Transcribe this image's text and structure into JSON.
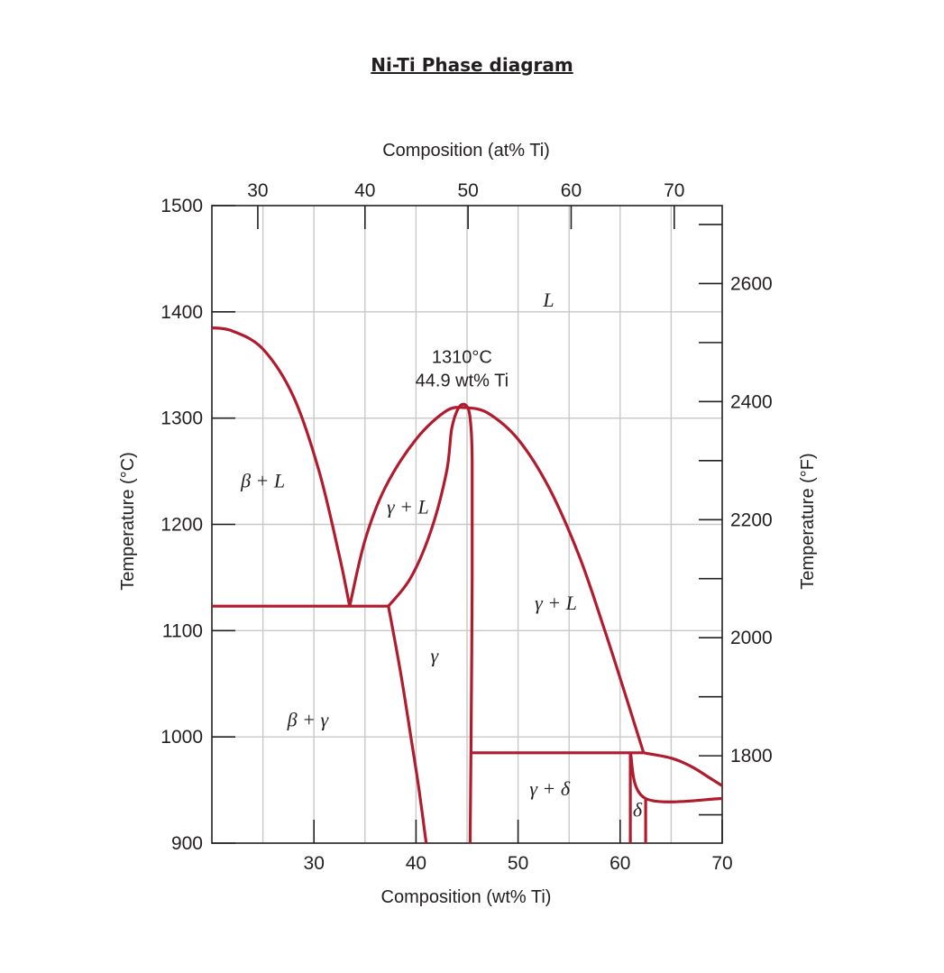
{
  "page": {
    "title": "Ni-Ti Phase diagram"
  },
  "chart_data": {
    "type": "line",
    "title": "Ni-Ti Phase diagram",
    "xlabel": "Composition (wt% Ti)",
    "x2label": "Composition (at% Ti)",
    "ylabel": "Temperature (°C)",
    "y2label": "Temperature (°F)",
    "xlim": [
      20,
      70
    ],
    "ylim": [
      900,
      1500
    ],
    "x_ticks": [
      30,
      40,
      50,
      60,
      70
    ],
    "y_ticks": [
      900,
      1000,
      1100,
      1200,
      1300,
      1400,
      1500
    ],
    "at_ticks": [
      30,
      40,
      50,
      60,
      70
    ],
    "at_tick_wt": [
      24.5,
      35.0,
      45.1,
      55.2,
      65.3
    ],
    "f_ticks": [
      1800,
      2000,
      2200,
      2400,
      2600
    ],
    "f_minor_ticks": [
      1700,
      1900,
      2100,
      2300,
      2500,
      2700
    ],
    "grid": true,
    "line_color": "#b01c2e",
    "series": [
      {
        "points": [
          [
            20,
            1385
          ],
          [
            22,
            1382
          ],
          [
            25,
            1365
          ],
          [
            28,
            1320
          ],
          [
            30.5,
            1250
          ],
          [
            32.5,
            1170
          ],
          [
            33.5,
            1123
          ]
        ]
      },
      {
        "points": [
          [
            33.5,
            1123
          ],
          [
            35,
            1185
          ],
          [
            37,
            1235
          ],
          [
            40,
            1280
          ],
          [
            43,
            1307
          ],
          [
            44.9,
            1310
          ]
        ]
      },
      {
        "points": [
          [
            37.3,
            1123
          ],
          [
            39.5,
            1150
          ],
          [
            41.5,
            1195
          ],
          [
            43,
            1250
          ],
          [
            43.5,
            1290
          ],
          [
            44.2,
            1310
          ],
          [
            44.9,
            1312
          ],
          [
            45.3,
            1300
          ],
          [
            45.5,
            1260
          ],
          [
            45.5,
            1150
          ],
          [
            45.4,
            1000
          ],
          [
            45.3,
            900
          ]
        ]
      },
      {
        "points": [
          [
            44.9,
            1310
          ],
          [
            47,
            1305
          ],
          [
            50,
            1280
          ],
          [
            53,
            1235
          ],
          [
            56,
            1170
          ],
          [
            58.5,
            1100
          ],
          [
            60.5,
            1040
          ],
          [
            62.3,
            985
          ]
        ]
      },
      {
        "points": [
          [
            20,
            1123
          ],
          [
            37.3,
            1123
          ]
        ]
      },
      {
        "points": [
          [
            37.3,
            1123
          ],
          [
            38.5,
            1060
          ],
          [
            39.5,
            1000
          ],
          [
            40.3,
            950
          ],
          [
            41,
            900
          ]
        ]
      },
      {
        "points": [
          [
            45.5,
            985
          ],
          [
            62.3,
            985
          ]
        ]
      },
      {
        "points": [
          [
            61,
            985
          ],
          [
            62.5,
            942
          ],
          [
            70,
            942
          ]
        ]
      },
      {
        "points": [
          [
            61,
            985
          ],
          [
            61,
            900
          ]
        ]
      },
      {
        "points": [
          [
            62.5,
            942
          ],
          [
            62.5,
            900
          ]
        ]
      },
      {
        "points": [
          [
            62.3,
            985
          ],
          [
            65,
            980
          ],
          [
            67,
            972
          ],
          [
            69,
            960
          ],
          [
            70,
            954
          ]
        ]
      }
    ],
    "phase_labels": [
      {
        "text": "L",
        "x": 53,
        "y": 1405
      },
      {
        "text": "β + L",
        "x": 25,
        "y": 1235
      },
      {
        "text": "γ + L",
        "x": 39.2,
        "y": 1210
      },
      {
        "text": "γ + L",
        "x": 53.7,
        "y": 1120
      },
      {
        "text": "γ",
        "x": 41.8,
        "y": 1070
      },
      {
        "text": "β + γ",
        "x": 29.4,
        "y": 1010
      },
      {
        "text": "γ + δ",
        "x": 53.1,
        "y": 945
      },
      {
        "text": "δ",
        "x": 61.7,
        "y": 925
      }
    ],
    "annotation": {
      "line1": "1310°C",
      "line2": "44.9 wt% Ti",
      "x": 44.5,
      "y1": 1352,
      "y2": 1330
    }
  }
}
